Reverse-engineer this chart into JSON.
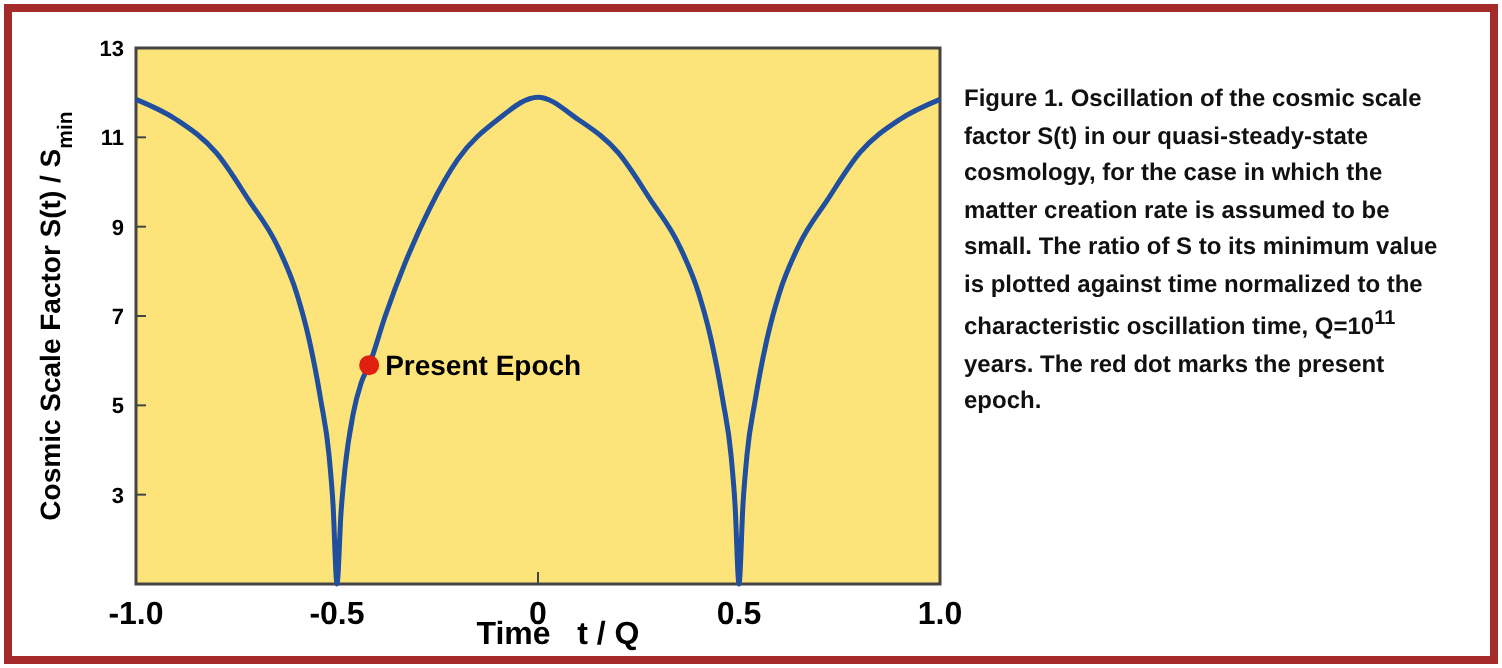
{
  "chart_data": {
    "type": "line",
    "xlabel": "Time   t / Q",
    "ylabel": "Cosmic Scale Factor S(t) / S$_{min}$",
    "xlim": [
      -1,
      1
    ],
    "xticks": [
      {
        "value": -1,
        "label": "-1.0"
      },
      {
        "value": -0.5,
        "label": "-0.5"
      },
      0,
      0.5,
      {
        "value": 1,
        "label": "1.0"
      }
    ],
    "ylim": [
      1,
      13
    ],
    "yticks": [
      3,
      5,
      7,
      9,
      11,
      13
    ],
    "grid": false,
    "series": [
      {
        "color": "#1f4f9e",
        "marker": "none",
        "x": [
          -1,
          -0.9,
          -0.8,
          -0.72,
          -0.65,
          -0.6,
          -0.57,
          -0.54,
          -0.52,
          -0.51,
          -0.5,
          -0.49,
          -0.48,
          -0.46,
          -0.44,
          -0.42,
          -0.38,
          -0.33,
          -0.27,
          -0.2,
          -0.1,
          0,
          0.1,
          0.2,
          0.28,
          0.35,
          0.4,
          0.43,
          0.46,
          0.48,
          0.49,
          0.5,
          0.51,
          0.52,
          0.54,
          0.57,
          0.6,
          0.65,
          0.72,
          0.8,
          0.9,
          1
        ],
        "values": [
          11.85,
          11.4,
          10.65,
          9.6,
          8.6,
          7.5,
          6.5,
          5.1,
          3.9,
          2.8,
          1.0,
          2.6,
          3.6,
          4.8,
          5.5,
          5.9,
          7.0,
          8.2,
          9.4,
          10.5,
          11.4,
          11.9,
          11.4,
          10.65,
          9.6,
          8.6,
          7.5,
          6.5,
          5.1,
          3.9,
          2.8,
          1.0,
          2.8,
          3.9,
          5.1,
          6.5,
          7.5,
          8.6,
          9.6,
          10.65,
          11.4,
          11.85
        ]
      },
      {
        "type": "scatter",
        "color": "#e0200e",
        "marker": "circle",
        "x": [
          -0.42
        ],
        "values": [
          5.9
        ]
      }
    ],
    "annotations": [
      {
        "text": "Present Epoch",
        "x": -0.42,
        "y": 5.9
      },
      "Figure 1. Oscillation of the cosmic scale factor S(t) in our quasi-steady-state cosmology, for the case in which the matter creation rate is assumed to be small. The ratio of S to its minimum value is plotted against time normalized to the characteristic oscillation time, Q=10$^{11}$ years. The red dot marks the present epoch."
    ]
  }
}
